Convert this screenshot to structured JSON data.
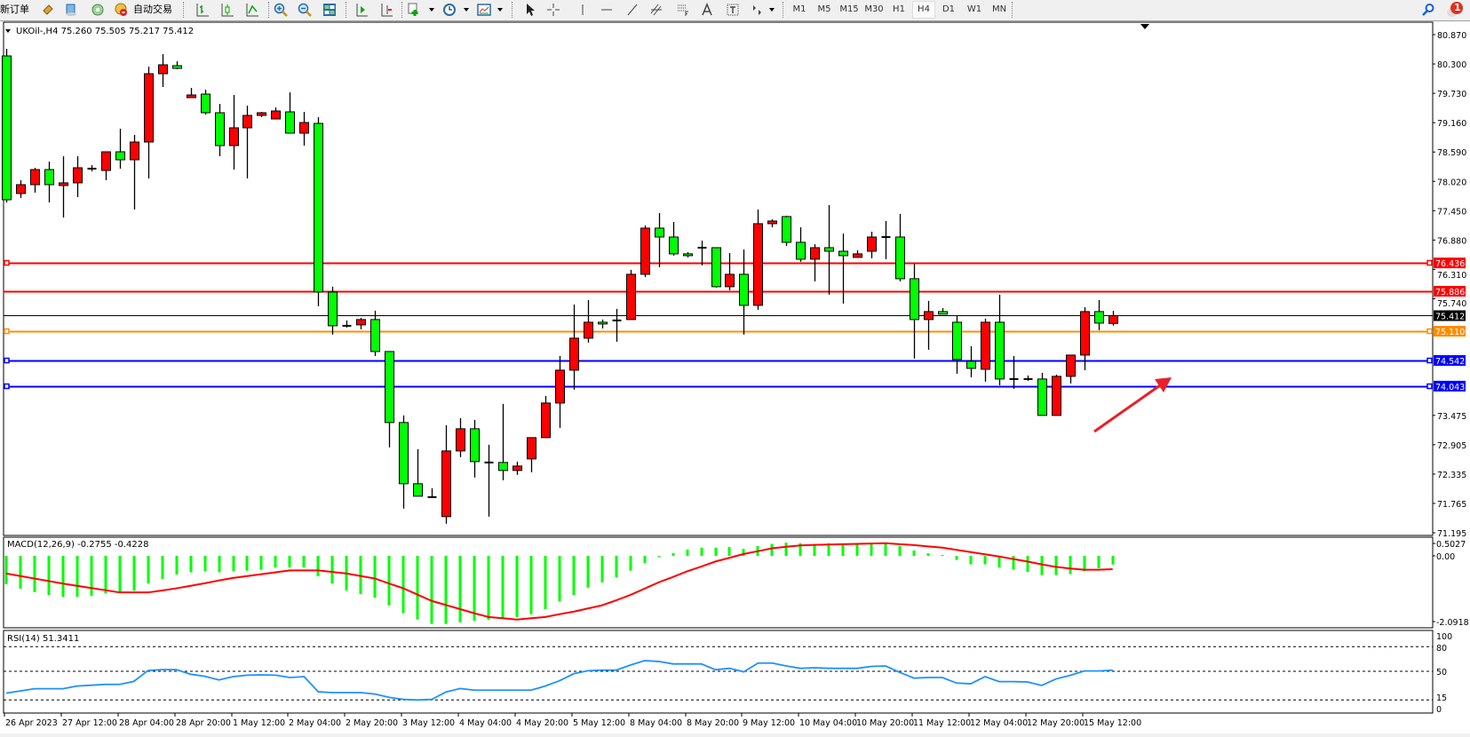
{
  "toolbar": {
    "new_order": "新订单",
    "auto_trading": "自动交易",
    "timeframes": [
      "M1",
      "M5",
      "M15",
      "M30",
      "H1",
      "H4",
      "D1",
      "W1",
      "MN"
    ],
    "selected_timeframe": "H4",
    "notification_count": "1",
    "icons": [
      "new-order-icon",
      "market-watch-icon",
      "data-window-icon",
      "signals-icon",
      "auto-trading-icon",
      "bar-chart-icon",
      "candlestick-icon",
      "line-chart-icon",
      "zoom-in-icon",
      "zoom-out-icon",
      "tile-windows-icon",
      "auto-scroll-icon",
      "chart-shift-icon",
      "indicators-icon",
      "periods-icon",
      "templates-icon",
      "cursor-icon",
      "crosshair-icon",
      "vertical-line-icon",
      "horizontal-line-icon",
      "trendline-icon",
      "equidistant-channel-icon",
      "fibonacci-icon",
      "text-icon",
      "text-label-icon",
      "arrows-icon",
      "search-icon",
      "notification-icon"
    ]
  },
  "chart_data": {
    "type": "candlestick",
    "title": "UKOil-,H4  75.260 75.505 75.217 75.412",
    "symbol": "UKOil-",
    "timeframe": "H4",
    "up_color": "#ff0000",
    "down_color": "#00ff00",
    "ylim": [
      71.195,
      80.87
    ],
    "y_ticks": [
      "80.870",
      "80.300",
      "79.730",
      "79.160",
      "78.590",
      "78.020",
      "77.450",
      "76.880",
      "76.310",
      "75.740",
      "73.475",
      "72.905",
      "72.335",
      "71.765",
      "71.195"
    ],
    "x_labels": [
      "26 Apr 2023",
      "27 Apr 12:00",
      "28 Apr 04:00",
      "28 Apr 20:00",
      "1 May 12:00",
      "2 May 04:00",
      "2 May 20:00",
      "3 May 12:00",
      "4 May 04:00",
      "4 May 20:00",
      "5 May 12:00",
      "8 May 04:00",
      "8 May 20:00",
      "9 May 12:00",
      "10 May 04:00",
      "10 May 20:00",
      "11 May 12:00",
      "12 May 04:00",
      "12 May 20:00",
      "15 May 12:00"
    ],
    "x_label_every_bars": 4,
    "grid": false,
    "ohlc": [
      [
        80.456,
        80.594,
        77.611,
        77.663
      ],
      [
        77.784,
        78.042,
        77.698,
        77.956
      ],
      [
        77.956,
        78.284,
        77.801,
        78.249
      ],
      [
        78.249,
        78.404,
        77.611,
        77.956
      ],
      [
        77.939,
        78.508,
        77.318,
        77.991
      ],
      [
        77.991,
        78.508,
        77.715,
        78.284
      ],
      [
        78.267,
        78.336,
        78.215,
        78.267
      ],
      [
        78.232,
        78.594,
        78.042,
        78.594
      ],
      [
        78.594,
        79.043,
        78.267,
        78.439
      ],
      [
        78.439,
        78.922,
        77.473,
        78.784
      ],
      [
        78.784,
        80.249,
        78.077,
        80.111
      ],
      [
        80.111,
        80.491,
        79.853,
        80.284
      ],
      [
        80.267,
        80.353,
        80.198,
        80.215
      ],
      [
        79.646,
        79.836,
        79.646,
        79.698
      ],
      [
        79.715,
        79.801,
        79.318,
        79.353
      ],
      [
        79.353,
        79.525,
        78.508,
        78.715
      ],
      [
        78.715,
        79.698,
        78.249,
        79.06
      ],
      [
        79.06,
        79.491,
        78.077,
        79.301
      ],
      [
        79.301,
        79.37,
        79.267,
        79.353
      ],
      [
        79.232,
        79.456,
        79.232,
        79.387
      ],
      [
        79.37,
        79.749,
        78.956,
        78.956
      ],
      [
        78.956,
        79.37,
        78.715,
        79.163
      ],
      [
        79.146,
        79.267,
        75.594,
        75.87
      ],
      [
        75.87,
        75.974,
        75.043,
        75.215
      ],
      [
        75.215,
        75.319,
        75.181,
        75.215
      ],
      [
        75.233,
        75.37,
        75.146,
        75.336
      ],
      [
        75.336,
        75.508,
        74.629,
        74.715
      ],
      [
        74.715,
        74.715,
        72.853,
        73.336
      ],
      [
        73.336,
        73.474,
        71.664,
        72.147
      ],
      [
        72.147,
        72.819,
        71.905,
        71.905
      ],
      [
        71.888,
        72.06,
        71.888,
        71.888
      ],
      [
        71.509,
        73.284,
        71.371,
        72.784
      ],
      [
        72.784,
        73.422,
        72.664,
        73.215
      ],
      [
        73.215,
        73.388,
        72.267,
        72.577
      ],
      [
        72.56,
        72.905,
        71.509,
        72.56
      ],
      [
        72.56,
        73.698,
        72.215,
        72.405
      ],
      [
        72.405,
        72.577,
        72.319,
        72.491
      ],
      [
        72.629,
        73.043,
        72.37,
        73.043
      ],
      [
        73.043,
        73.853,
        73.043,
        73.715
      ],
      [
        73.715,
        74.629,
        73.233,
        74.353
      ],
      [
        74.353,
        75.629,
        73.974,
        74.974
      ],
      [
        74.974,
        75.715,
        74.888,
        75.284
      ],
      [
        75.284,
        75.336,
        75.164,
        75.25
      ],
      [
        75.319,
        75.543,
        74.905,
        75.319
      ],
      [
        75.336,
        76.301,
        75.336,
        76.215
      ],
      [
        76.215,
        77.163,
        76.163,
        77.112
      ],
      [
        77.112,
        77.405,
        76.353,
        76.939
      ],
      [
        76.939,
        77.232,
        76.577,
        76.612
      ],
      [
        76.612,
        76.646,
        76.543,
        76.577
      ],
      [
        76.732,
        76.87,
        76.388,
        76.732
      ],
      [
        76.732,
        76.732,
        75.957,
        75.974
      ],
      [
        75.974,
        76.629,
        75.905,
        76.215
      ],
      [
        76.215,
        76.698,
        75.043,
        75.612
      ],
      [
        75.612,
        77.474,
        75.526,
        77.198
      ],
      [
        77.198,
        77.284,
        77.129,
        77.25
      ],
      [
        77.336,
        77.353,
        76.767,
        76.836
      ],
      [
        76.836,
        77.129,
        76.457,
        76.508
      ],
      [
        76.508,
        76.801,
        76.077,
        76.732
      ],
      [
        76.732,
        77.56,
        75.819,
        76.663
      ],
      [
        76.663,
        77.008,
        75.646,
        76.577
      ],
      [
        76.543,
        76.681,
        76.543,
        76.612
      ],
      [
        76.663,
        77.043,
        76.526,
        76.939
      ],
      [
        76.939,
        77.25,
        76.508,
        76.939
      ],
      [
        76.939,
        77.388,
        76.077,
        76.129
      ],
      [
        76.129,
        76.422,
        74.577,
        75.336
      ],
      [
        75.336,
        75.698,
        74.75,
        75.491
      ],
      [
        75.491,
        75.56,
        75.44,
        75.44
      ],
      [
        75.284,
        75.422,
        74.284,
        74.56
      ],
      [
        74.526,
        74.819,
        74.215,
        74.388
      ],
      [
        74.37,
        75.353,
        74.129,
        75.284
      ],
      [
        75.284,
        75.819,
        74.06,
        74.181
      ],
      [
        74.181,
        74.629,
        73.991,
        74.181
      ],
      [
        74.181,
        74.25,
        74.146,
        74.181
      ],
      [
        74.181,
        74.301,
        73.474,
        73.474
      ],
      [
        73.474,
        74.267,
        73.474,
        74.233
      ],
      [
        74.233,
        74.646,
        74.094,
        74.646
      ],
      [
        74.646,
        75.577,
        74.353,
        75.491
      ],
      [
        75.491,
        75.715,
        75.129,
        75.267
      ],
      [
        75.26,
        75.505,
        75.217,
        75.412
      ]
    ],
    "horizontal_lines": [
      {
        "price": "76.436",
        "color": "#ff0000",
        "marked": true
      },
      {
        "price": "75.886",
        "color": "#ff0000",
        "marked": false
      },
      {
        "price": "75.412",
        "color": "#000000",
        "marked": false,
        "current": true
      },
      {
        "price": "75.110",
        "color": "#ff8c00",
        "marked": true
      },
      {
        "price": "74.542",
        "color": "#0000ff",
        "marked": true
      },
      {
        "price": "74.043",
        "color": "#0000ff",
        "marked": true
      }
    ],
    "annotation": {
      "type": "arrow",
      "color": "#e8202a",
      "direction": "up-right"
    },
    "macd": {
      "label": "MACD(12,26,9) -0.2755 -0.4228",
      "y_ticks": [
        "0.5027",
        "0.00",
        "-2.0918"
      ],
      "ylim": [
        -2.0918,
        0.5027
      ],
      "histogram_color": "#00ff00",
      "signal_color": "#ff0000",
      "histogram": [
        -0.9,
        -1.04,
        -1.15,
        -1.24,
        -1.3,
        -1.3,
        -1.27,
        -1.19,
        -1.15,
        -1.1,
        -0.88,
        -0.73,
        -0.59,
        -0.52,
        -0.49,
        -0.52,
        -0.49,
        -0.47,
        -0.44,
        -0.37,
        -0.37,
        -0.37,
        -0.65,
        -0.88,
        -1.1,
        -1.21,
        -1.33,
        -1.57,
        -1.82,
        -2.02,
        -2.16,
        -2.16,
        -2.11,
        -2.06,
        -2.03,
        -1.97,
        -1.94,
        -1.85,
        -1.69,
        -1.45,
        -1.24,
        -1.01,
        -0.84,
        -0.68,
        -0.47,
        -0.23,
        -0.03,
        0.09,
        0.2,
        0.26,
        0.26,
        0.28,
        0.22,
        0.31,
        0.38,
        0.42,
        0.4,
        0.38,
        0.4,
        0.38,
        0.36,
        0.38,
        0.38,
        0.31,
        0.17,
        0.08,
        0.03,
        -0.13,
        -0.27,
        -0.27,
        -0.37,
        -0.44,
        -0.51,
        -0.61,
        -0.61,
        -0.58,
        -0.49,
        -0.39,
        -0.2755
      ],
      "signal": [
        -0.56,
        -0.64,
        -0.72,
        -0.8,
        -0.88,
        -0.95,
        -1.02,
        -1.09,
        -1.16,
        -1.16,
        -1.16,
        -1.1,
        -1.03,
        -0.95,
        -0.87,
        -0.78,
        -0.7,
        -0.64,
        -0.58,
        -0.52,
        -0.46,
        -0.46,
        -0.46,
        -0.51,
        -0.56,
        -0.64,
        -0.72,
        -0.88,
        -1.03,
        -1.23,
        -1.43,
        -1.56,
        -1.69,
        -1.82,
        -1.94,
        -1.98,
        -2.02,
        -1.98,
        -1.94,
        -1.85,
        -1.77,
        -1.67,
        -1.57,
        -1.41,
        -1.24,
        -1.04,
        -0.84,
        -0.67,
        -0.49,
        -0.34,
        -0.18,
        -0.06,
        0.06,
        0.15,
        0.24,
        0.29,
        0.33,
        0.35,
        0.36,
        0.37,
        0.38,
        0.39,
        0.4,
        0.37,
        0.34,
        0.3,
        0.26,
        0.19,
        0.12,
        0.05,
        -0.02,
        -0.1,
        -0.18,
        -0.27,
        -0.35,
        -0.4,
        -0.44,
        -0.44,
        -0.4228
      ]
    },
    "rsi": {
      "label": "RSI(14) 51.3411",
      "y_ticks": [
        "100",
        "80",
        "50",
        "15",
        "0"
      ],
      "levels": [
        80,
        50,
        15
      ],
      "ylim": [
        0,
        100
      ],
      "color": "#1e90ff",
      "values": [
        23.3,
        26,
        28.7,
        28.7,
        28.7,
        32,
        33,
        34,
        34,
        37.7,
        51,
        52,
        52,
        46.4,
        43.9,
        39.5,
        43.5,
        45.3,
        45.7,
        45.3,
        42.4,
        43.5,
        25,
        24,
        24,
        24,
        22.2,
        18.2,
        15.7,
        15,
        15.7,
        24.7,
        29,
        27,
        27,
        27,
        27,
        27,
        32,
        38.4,
        47,
        50.7,
        51.4,
        51.4,
        57.6,
        63,
        62,
        59,
        59,
        59,
        52,
        53.6,
        49.3,
        60,
        60,
        56.5,
        53.6,
        54.3,
        53.6,
        53.6,
        53.6,
        56,
        56.5,
        48.6,
        41.7,
        42.4,
        42.4,
        35.6,
        34.8,
        43.5,
        37.4,
        37.4,
        37,
        32.7,
        40.6,
        45,
        50.4,
        50.4,
        51.3411
      ]
    }
  }
}
